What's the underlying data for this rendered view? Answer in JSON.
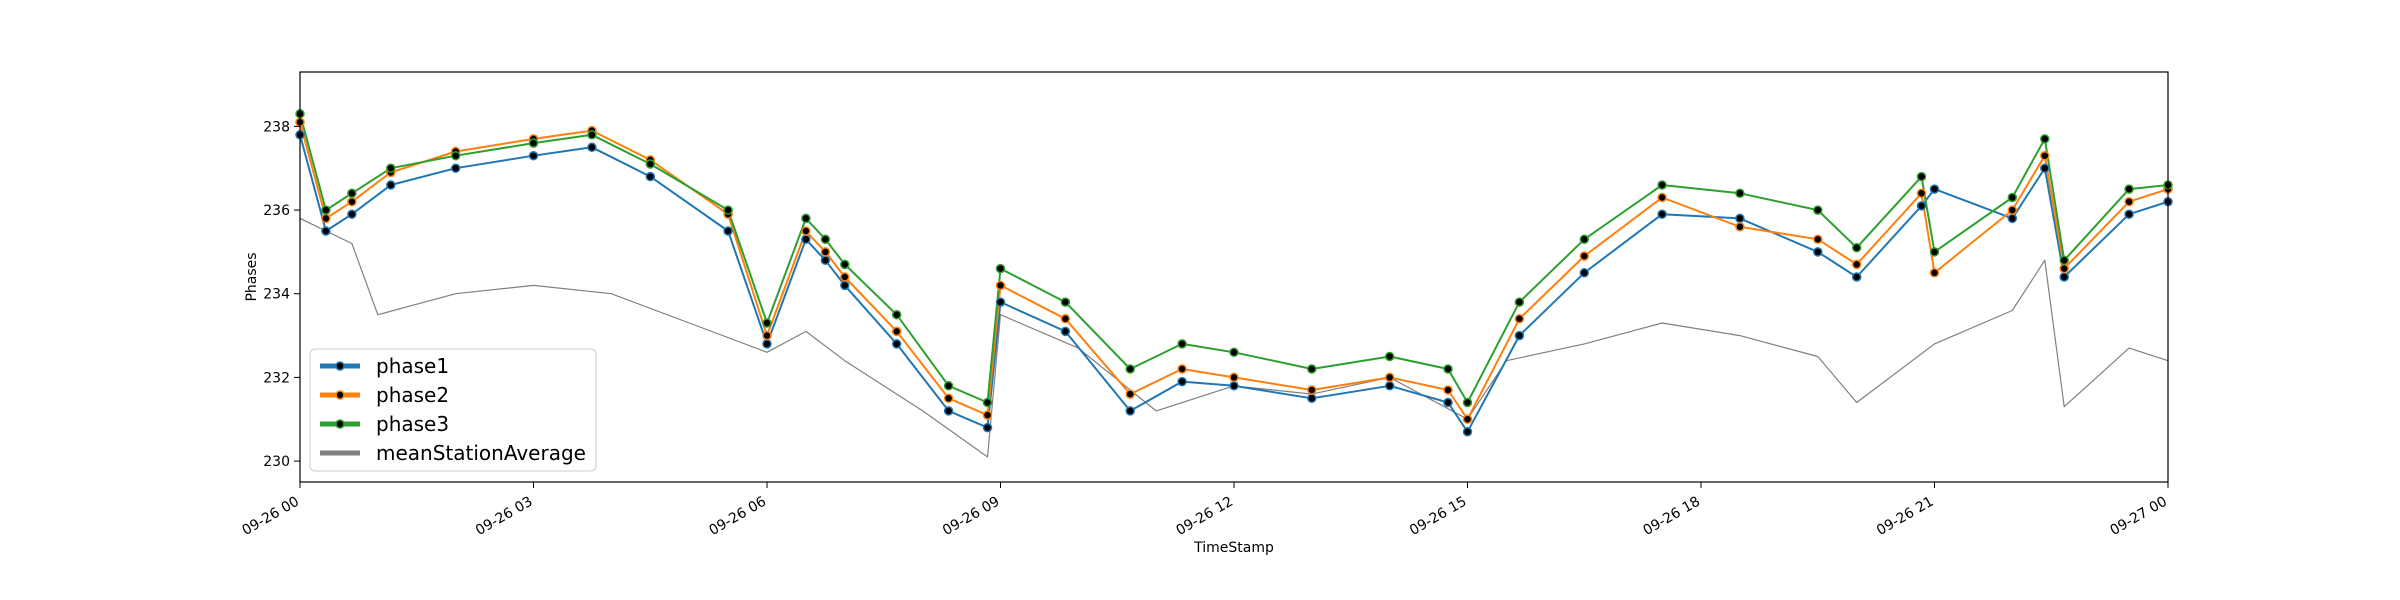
{
  "chart_data": {
    "type": "line",
    "xlabel": "TimeStamp",
    "ylabel": "Phases",
    "xlim": [
      "2019-09-26 00:00",
      "2019-09-27 00:00"
    ],
    "ylim": [
      229.5,
      239.3
    ],
    "x_ticks": [
      {
        "t": "2019-09-26 00:00",
        "label": "09-26 00"
      },
      {
        "t": "2019-09-26 03:00",
        "label": "09-26 03"
      },
      {
        "t": "2019-09-26 06:00",
        "label": "09-26 06"
      },
      {
        "t": "2019-09-26 09:00",
        "label": "09-26 09"
      },
      {
        "t": "2019-09-26 12:00",
        "label": "09-26 12"
      },
      {
        "t": "2019-09-26 15:00",
        "label": "09-26 15"
      },
      {
        "t": "2019-09-26 18:00",
        "label": "09-26 18"
      },
      {
        "t": "2019-09-26 21:00",
        "label": "09-26 21"
      },
      {
        "t": "2019-09-27 00:00",
        "label": "09-27 00"
      }
    ],
    "y_ticks": [
      230,
      232,
      234,
      236,
      238
    ],
    "grid": false,
    "legend": {
      "position": "lower-left"
    },
    "series": [
      {
        "name": "phase1",
        "color": "#1f77b4",
        "marker": "dot",
        "x": [
          "2019-09-26 00:00",
          "2019-09-26 00:20",
          "2019-09-26 00:40",
          "2019-09-26 01:10",
          "2019-09-26 02:00",
          "2019-09-26 03:00",
          "2019-09-26 03:45",
          "2019-09-26 04:30",
          "2019-09-26 05:30",
          "2019-09-26 06:00",
          "2019-09-26 06:30",
          "2019-09-26 06:45",
          "2019-09-26 07:00",
          "2019-09-26 07:40",
          "2019-09-26 08:20",
          "2019-09-26 08:50",
          "2019-09-26 09:00",
          "2019-09-26 09:50",
          "2019-09-26 10:40",
          "2019-09-26 11:20",
          "2019-09-26 12:00",
          "2019-09-26 13:00",
          "2019-09-26 14:00",
          "2019-09-26 14:45",
          "2019-09-26 15:00",
          "2019-09-26 15:40",
          "2019-09-26 16:30",
          "2019-09-26 17:30",
          "2019-09-26 18:30",
          "2019-09-26 19:30",
          "2019-09-26 20:00",
          "2019-09-26 20:50",
          "2019-09-26 21:00",
          "2019-09-26 22:00",
          "2019-09-26 22:25",
          "2019-09-26 22:40",
          "2019-09-26 23:30",
          "2019-09-27 00:00"
        ],
        "y": [
          237.8,
          235.5,
          235.9,
          236.6,
          237.0,
          237.3,
          237.5,
          236.8,
          235.5,
          232.8,
          235.3,
          234.8,
          234.2,
          232.8,
          231.2,
          230.8,
          233.8,
          233.1,
          231.2,
          231.9,
          231.8,
          231.5,
          231.8,
          231.4,
          230.7,
          233.0,
          234.5,
          235.9,
          235.8,
          235.0,
          234.4,
          236.1,
          236.5,
          235.8,
          237.0,
          234.4,
          235.9,
          236.2
        ]
      },
      {
        "name": "phase2",
        "color": "#ff7f0e",
        "marker": "dot",
        "x": [
          "2019-09-26 00:00",
          "2019-09-26 00:20",
          "2019-09-26 00:40",
          "2019-09-26 01:10",
          "2019-09-26 02:00",
          "2019-09-26 03:00",
          "2019-09-26 03:45",
          "2019-09-26 04:30",
          "2019-09-26 05:30",
          "2019-09-26 06:00",
          "2019-09-26 06:30",
          "2019-09-26 06:45",
          "2019-09-26 07:00",
          "2019-09-26 07:40",
          "2019-09-26 08:20",
          "2019-09-26 08:50",
          "2019-09-26 09:00",
          "2019-09-26 09:50",
          "2019-09-26 10:40",
          "2019-09-26 11:20",
          "2019-09-26 12:00",
          "2019-09-26 13:00",
          "2019-09-26 14:00",
          "2019-09-26 14:45",
          "2019-09-26 15:00",
          "2019-09-26 15:40",
          "2019-09-26 16:30",
          "2019-09-26 17:30",
          "2019-09-26 18:30",
          "2019-09-26 19:30",
          "2019-09-26 20:00",
          "2019-09-26 20:50",
          "2019-09-26 21:00",
          "2019-09-26 22:00",
          "2019-09-26 22:25",
          "2019-09-26 22:40",
          "2019-09-26 23:30",
          "2019-09-27 00:00"
        ],
        "y": [
          238.1,
          235.8,
          236.2,
          236.9,
          237.4,
          237.7,
          237.9,
          237.2,
          235.9,
          233.0,
          235.5,
          235.0,
          234.4,
          233.1,
          231.5,
          231.1,
          234.2,
          233.4,
          231.6,
          232.2,
          232.0,
          231.7,
          232.0,
          231.7,
          231.0,
          233.4,
          234.9,
          236.3,
          235.6,
          235.3,
          234.7,
          236.4,
          234.5,
          236.0,
          237.3,
          234.6,
          236.2,
          236.5
        ]
      },
      {
        "name": "phase3",
        "color": "#2ca02c",
        "marker": "dot",
        "x": [
          "2019-09-26 00:00",
          "2019-09-26 00:20",
          "2019-09-26 00:40",
          "2019-09-26 01:10",
          "2019-09-26 02:00",
          "2019-09-26 03:00",
          "2019-09-26 03:45",
          "2019-09-26 04:30",
          "2019-09-26 05:30",
          "2019-09-26 06:00",
          "2019-09-26 06:30",
          "2019-09-26 06:45",
          "2019-09-26 07:00",
          "2019-09-26 07:40",
          "2019-09-26 08:20",
          "2019-09-26 08:50",
          "2019-09-26 09:00",
          "2019-09-26 09:50",
          "2019-09-26 10:40",
          "2019-09-26 11:20",
          "2019-09-26 12:00",
          "2019-09-26 13:00",
          "2019-09-26 14:00",
          "2019-09-26 14:45",
          "2019-09-26 15:00",
          "2019-09-26 15:40",
          "2019-09-26 16:30",
          "2019-09-26 17:30",
          "2019-09-26 18:30",
          "2019-09-26 19:30",
          "2019-09-26 20:00",
          "2019-09-26 20:50",
          "2019-09-26 21:00",
          "2019-09-26 22:00",
          "2019-09-26 22:25",
          "2019-09-26 22:40",
          "2019-09-26 23:30",
          "2019-09-27 00:00"
        ],
        "y": [
          238.3,
          236.0,
          236.4,
          237.0,
          237.3,
          237.6,
          237.8,
          237.1,
          236.0,
          233.3,
          235.8,
          235.3,
          234.7,
          233.5,
          231.8,
          231.4,
          234.6,
          233.8,
          232.2,
          232.8,
          232.6,
          232.2,
          232.5,
          232.2,
          231.4,
          233.8,
          235.3,
          236.6,
          236.4,
          236.0,
          235.1,
          236.8,
          235.0,
          236.3,
          237.7,
          234.8,
          236.5,
          236.6
        ]
      },
      {
        "name": "meanStationAverage",
        "color": "#808080",
        "marker": "none",
        "x": [
          "2019-09-26 00:00",
          "2019-09-26 00:40",
          "2019-09-26 01:00",
          "2019-09-26 02:00",
          "2019-09-26 03:00",
          "2019-09-26 04:00",
          "2019-09-26 05:00",
          "2019-09-26 06:00",
          "2019-09-26 06:30",
          "2019-09-26 07:00",
          "2019-09-26 08:00",
          "2019-09-26 08:50",
          "2019-09-26 09:00",
          "2019-09-26 10:00",
          "2019-09-26 11:00",
          "2019-09-26 12:00",
          "2019-09-26 13:00",
          "2019-09-26 14:00",
          "2019-09-26 15:00",
          "2019-09-26 15:30",
          "2019-09-26 16:30",
          "2019-09-26 17:30",
          "2019-09-26 18:30",
          "2019-09-26 19:30",
          "2019-09-26 20:00",
          "2019-09-26 21:00",
          "2019-09-26 22:00",
          "2019-09-26 22:25",
          "2019-09-26 22:40",
          "2019-09-26 23:30",
          "2019-09-27 00:00"
        ],
        "y": [
          235.8,
          235.2,
          233.5,
          234.0,
          234.2,
          234.0,
          233.3,
          232.6,
          233.1,
          232.4,
          231.2,
          230.1,
          233.5,
          232.7,
          231.2,
          231.8,
          231.6,
          232.0,
          231.0,
          232.4,
          232.8,
          233.3,
          233.0,
          232.5,
          231.4,
          232.8,
          233.6,
          234.8,
          231.3,
          232.7,
          232.4
        ]
      }
    ]
  }
}
